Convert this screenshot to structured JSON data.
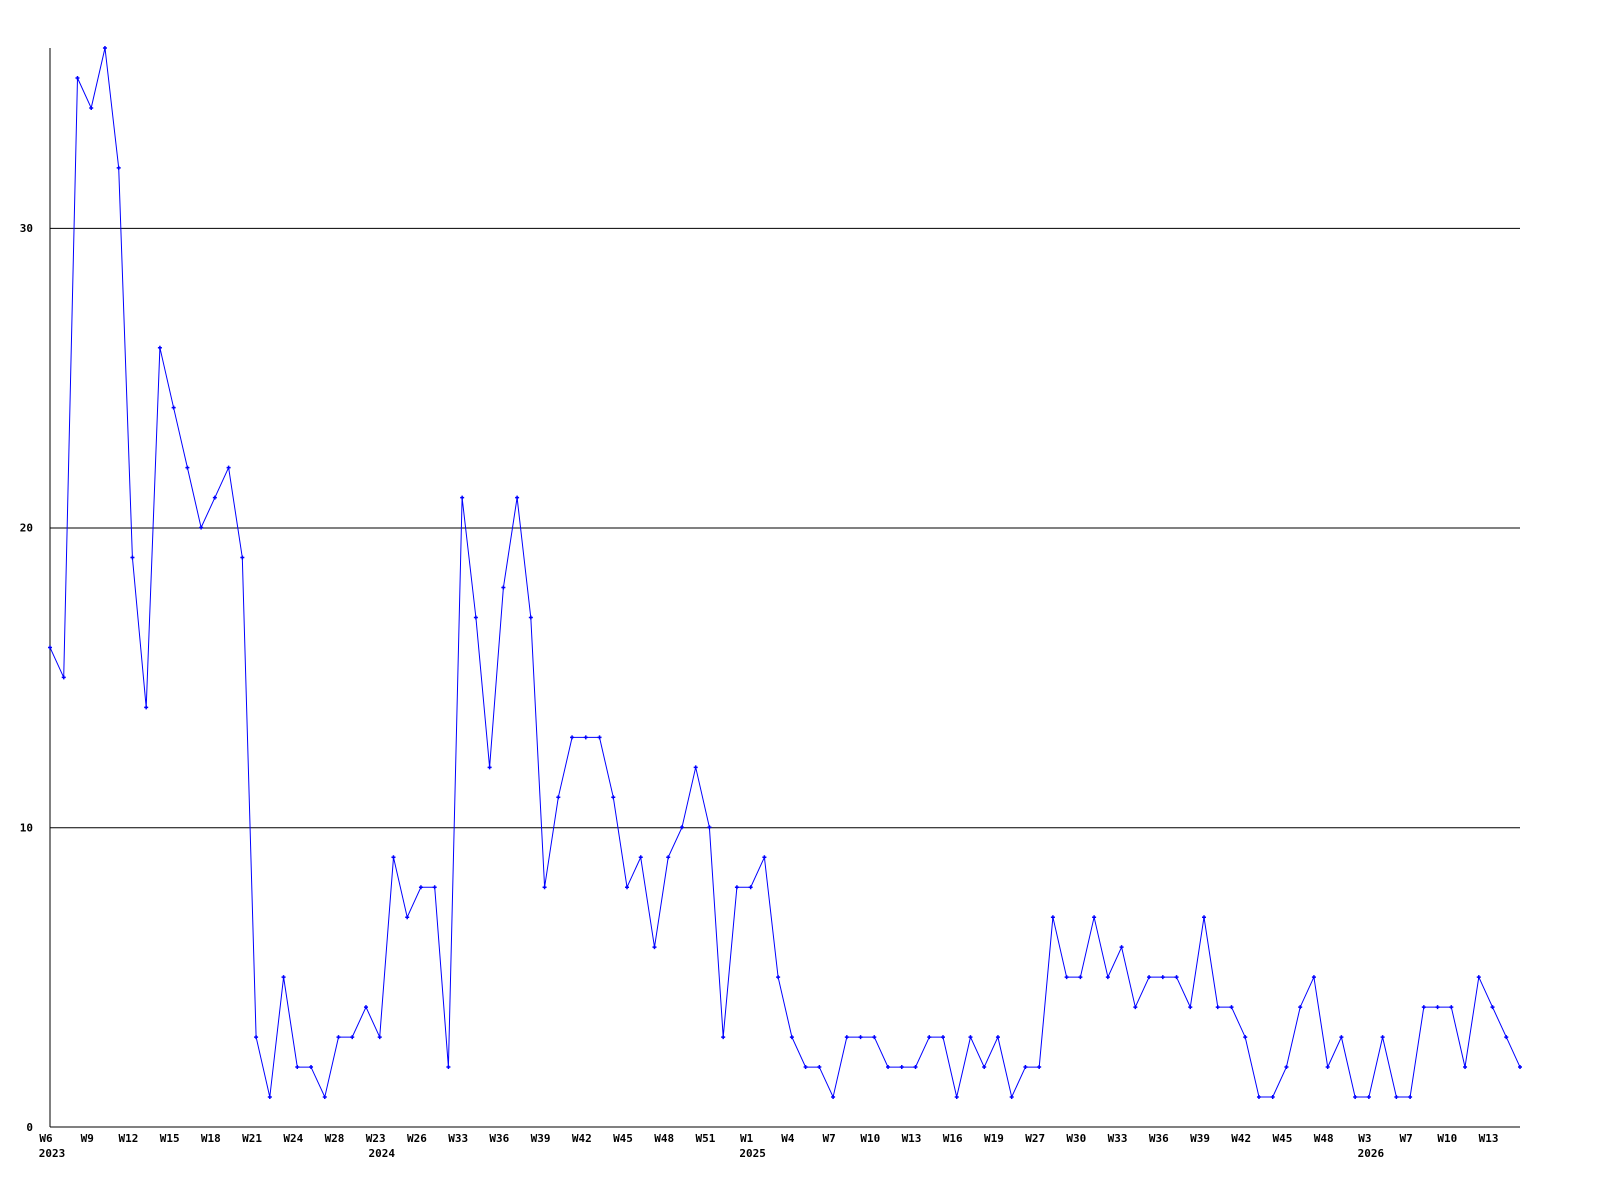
{
  "chart_data": {
    "type": "line",
    "title": "",
    "xlabel": "",
    "ylabel": "",
    "ylim": [
      0,
      36
    ],
    "grid": "horizontal",
    "line_color": "#0000ff",
    "y_ticks": [
      "0",
      "10",
      "20",
      "30"
    ],
    "y_tick_values": [
      0,
      10,
      20,
      30
    ],
    "x_tick_labels": [
      {
        "i": 0,
        "label": "W6",
        "year": "2023"
      },
      {
        "i": 3,
        "label": "W9"
      },
      {
        "i": 6,
        "label": "W12"
      },
      {
        "i": 9,
        "label": "W15"
      },
      {
        "i": 12,
        "label": "W18"
      },
      {
        "i": 15,
        "label": "W21"
      },
      {
        "i": 18,
        "label": "W24"
      },
      {
        "i": 21,
        "label": "W28"
      },
      {
        "i": 24,
        "label": "W23",
        "year": "2024"
      },
      {
        "i": 27,
        "label": "W26"
      },
      {
        "i": 30,
        "label": "W33"
      },
      {
        "i": 33,
        "label": "W36"
      },
      {
        "i": 36,
        "label": "W39"
      },
      {
        "i": 39,
        "label": "W42"
      },
      {
        "i": 42,
        "label": "W45"
      },
      {
        "i": 45,
        "label": "W48"
      },
      {
        "i": 48,
        "label": "W51"
      },
      {
        "i": 51,
        "label": "W1",
        "year": "2025"
      },
      {
        "i": 54,
        "label": "W4"
      },
      {
        "i": 57,
        "label": "W7"
      },
      {
        "i": 60,
        "label": "W10"
      },
      {
        "i": 63,
        "label": "W13"
      },
      {
        "i": 66,
        "label": "W16"
      },
      {
        "i": 69,
        "label": "W19"
      },
      {
        "i": 72,
        "label": "W27"
      },
      {
        "i": 75,
        "label": "W30"
      },
      {
        "i": 78,
        "label": "W33"
      },
      {
        "i": 81,
        "label": "W36"
      },
      {
        "i": 84,
        "label": "W39"
      },
      {
        "i": 87,
        "label": "W42"
      },
      {
        "i": 90,
        "label": "W45"
      },
      {
        "i": 93,
        "label": "W48"
      },
      {
        "i": 96,
        "label": "W3",
        "year": "2026"
      },
      {
        "i": 99,
        "label": "W7"
      },
      {
        "i": 102,
        "label": "W10"
      },
      {
        "i": 105,
        "label": "W13"
      }
    ],
    "values": [
      16,
      15,
      35,
      34,
      36,
      32,
      19,
      14,
      26,
      24,
      22,
      20,
      21,
      22,
      19,
      3,
      1,
      5,
      2,
      2,
      1,
      3,
      3,
      4,
      3,
      9,
      7,
      8,
      8,
      2,
      21,
      17,
      12,
      18,
      21,
      17,
      8,
      11,
      13,
      13,
      13,
      11,
      8,
      9,
      6,
      9,
      10,
      12,
      10,
      3,
      8,
      8,
      9,
      5,
      3,
      2,
      2,
      1,
      3,
      3,
      3,
      2,
      2,
      2,
      3,
      3,
      1,
      3,
      2,
      3,
      1,
      2,
      2,
      7,
      5,
      5,
      7,
      5,
      6,
      4,
      5,
      5,
      5,
      4,
      7,
      4,
      4,
      3,
      1,
      1,
      2,
      4,
      5,
      2,
      3,
      1,
      1,
      3,
      1,
      1,
      4,
      4,
      4,
      2,
      5,
      4,
      3,
      2
    ]
  }
}
